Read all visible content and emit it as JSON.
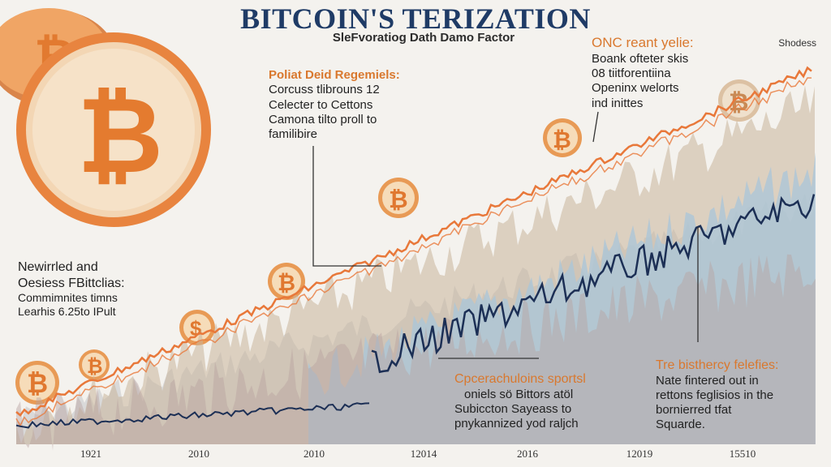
{
  "header": {
    "title": "BITCOIN'S TERIZATION",
    "subtitle": "SleFvoratiog Dath Damo Factor",
    "top_right_label": "Shodess"
  },
  "annotations": {
    "a1": {
      "head": "Poliat Deid Regemiels:",
      "lines": [
        "Corcuss tlibrouns 12",
        "Celecter to Cettons",
        "Camona tilto proll to",
        "familibire"
      ]
    },
    "a2": {
      "head": "ONC reant yelie:",
      "lines": [
        "Boank ofteter skis",
        "08 tiitforentiina",
        "Openinx welorts",
        "ind inittes"
      ]
    },
    "a3": {
      "head": "Newirrled and",
      "lines": [
        "Oesiess FBittclias:",
        "Commimnites timns",
        "Learhis 6.25to IPult"
      ]
    },
    "a4": {
      "head": "Cpcerachuloins sportsl",
      "lines": [
        "oniels sö Bittors atöl",
        "Subiccton Sayeass to",
        "pnykannized yod raljch"
      ]
    },
    "a5": {
      "head": "Tre bisthercy felefies:",
      "lines": [
        "Nate fintered out in",
        "rettons feglisios in the",
        "bornierred tfat",
        "Squarde."
      ]
    }
  },
  "chart_data": {
    "type": "line",
    "title": "BITCOIN'S TERIZATION",
    "subtitle": "SleFvoratiog Dath Damo Factor",
    "x_tick_labels": [
      "1921",
      "2010",
      "2010",
      "12014",
      "2016",
      "12019",
      "15510"
    ],
    "y_tick_labels": [],
    "grid": false,
    "legend": "none",
    "colors": {
      "orange": "#e8783a",
      "navy": "#1c2f55",
      "tan": "#c9b49b",
      "blue": "#a9c6da",
      "mauve": "#b9a2a0",
      "gray": "#c3c5c9"
    }
  }
}
